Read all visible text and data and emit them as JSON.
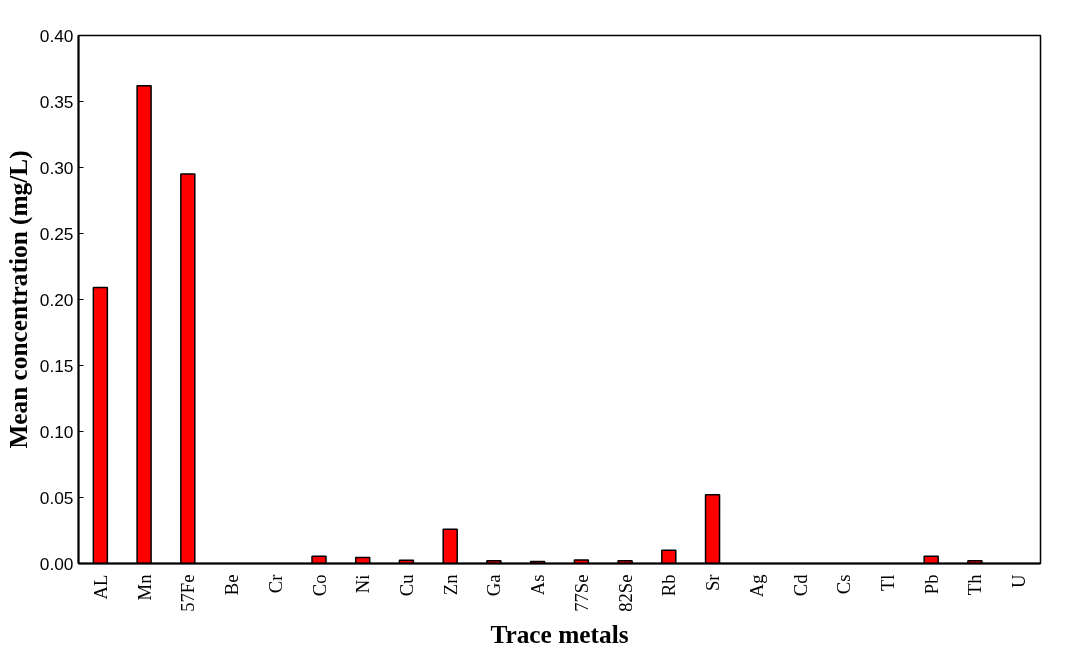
{
  "chart_data": {
    "type": "bar",
    "xlabel": "Trace metals",
    "ylabel": "Mean concentration (mg/L)",
    "categories": [
      "AL",
      "Mn",
      "57Fe",
      "Be",
      "Cr",
      "Co",
      "Ni",
      "Cu",
      "Zn",
      "Ga",
      "As",
      "77Se",
      "82Se",
      "Rb",
      "Sr",
      "Ag",
      "Cd",
      "Cs",
      "Tl",
      "Pb",
      "Th",
      "U"
    ],
    "values": [
      0.209,
      0.362,
      0.295,
      null,
      null,
      0.0055,
      0.0045,
      0.0024,
      0.026,
      0.002,
      0.0016,
      0.0026,
      0.0021,
      0.01,
      0.052,
      null,
      null,
      null,
      null,
      0.0055,
      0.002,
      null
    ],
    "color": "#ff0000",
    "ylim": [
      0,
      0.4
    ],
    "yticks": [
      {
        "value": 0,
        "label": "0.00"
      },
      {
        "value": 0.05,
        "label": "0.05"
      },
      {
        "value": 0.1,
        "label": "0.10"
      },
      {
        "value": 0.15,
        "label": "0.15"
      },
      {
        "value": 0.2,
        "label": "0.20"
      },
      {
        "value": 0.25,
        "label": "0.25"
      },
      {
        "value": 0.3,
        "label": "0.30"
      },
      {
        "value": 0.35,
        "label": "0.35"
      },
      {
        "value": 0.4,
        "label": "0.40"
      }
    ],
    "grid": false
  }
}
